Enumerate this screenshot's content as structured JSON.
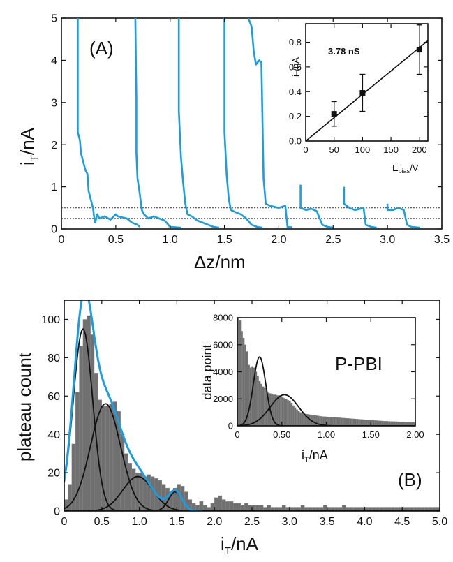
{
  "colors": {
    "trace": "#1a9ee0",
    "hist_fill": "#707070",
    "hist_edge": "#8a8a8a",
    "fit": "#111111",
    "axis": "#111111"
  },
  "chart_data": [
    {
      "type": "line",
      "panel_label": "(A)",
      "xlabel": "Δz/nm",
      "ylabel_main": "i",
      "ylabel_sub": "T",
      "ylabel_tail": "/nA",
      "xlim": [
        0,
        3.5
      ],
      "ylim": [
        0,
        5
      ],
      "xticks": [
        "0",
        "0.5",
        "1.0",
        "1.5",
        "2.0",
        "2.5",
        "3.0",
        "3.5"
      ],
      "yticks": [
        "0",
        "1",
        "2",
        "3",
        "4",
        "5"
      ],
      "reference_lines": [
        0.25,
        0.5
      ],
      "series": [
        {
          "points": [
            [
              0.15,
              5
            ],
            [
              0.15,
              2.3
            ],
            [
              0.17,
              2.1
            ],
            [
              0.18,
              1.8
            ],
            [
              0.2,
              1.6
            ],
            [
              0.22,
              1.4
            ],
            [
              0.24,
              1.3
            ],
            [
              0.25,
              0.9
            ],
            [
              0.27,
              0.7
            ],
            [
              0.29,
              0.5
            ],
            [
              0.3,
              0.3
            ],
            [
              0.31,
              0.15
            ],
            [
              0.33,
              0.35
            ],
            [
              0.35,
              0.25
            ],
            [
              0.4,
              0.3
            ],
            [
              0.45,
              0.22
            ],
            [
              0.5,
              0.35
            ],
            [
              0.52,
              0.3
            ],
            [
              0.6,
              0.25
            ],
            [
              0.65,
              0.15
            ],
            [
              0.7,
              0.1
            ],
            [
              0.72,
              0.05
            ]
          ]
        },
        {
          "points": [
            [
              0.68,
              5
            ],
            [
              0.69,
              3.1
            ],
            [
              0.69,
              1.8
            ],
            [
              0.7,
              1.2
            ],
            [
              0.72,
              0.85
            ],
            [
              0.74,
              0.45
            ],
            [
              0.76,
              0.35
            ],
            [
              0.8,
              0.25
            ],
            [
              0.85,
              0.3
            ],
            [
              0.9,
              0.25
            ],
            [
              0.95,
              0.2
            ],
            [
              1.0,
              0.05
            ],
            [
              1.05,
              0.04
            ],
            [
              1.1,
              0.03
            ]
          ]
        },
        {
          "points": [
            [
              1.08,
              5
            ],
            [
              1.08,
              2.8
            ],
            [
              1.1,
              1.7
            ],
            [
              1.12,
              1.1
            ],
            [
              1.14,
              0.6
            ],
            [
              1.16,
              0.35
            ],
            [
              1.2,
              0.3
            ],
            [
              1.25,
              0.2
            ],
            [
              1.3,
              0.15
            ],
            [
              1.35,
              0.1
            ],
            [
              1.4,
              0.05
            ],
            [
              1.45,
              0.03
            ]
          ]
        },
        {
          "points": [
            [
              1.5,
              5
            ],
            [
              1.5,
              2.3
            ],
            [
              1.52,
              1.3
            ],
            [
              1.54,
              0.7
            ],
            [
              1.56,
              0.45
            ],
            [
              1.6,
              0.4
            ],
            [
              1.65,
              0.35
            ],
            [
              1.7,
              0.25
            ],
            [
              1.75,
              0.1
            ],
            [
              1.8,
              0.05
            ],
            [
              1.85,
              0.03
            ]
          ]
        },
        {
          "points": [
            [
              1.72,
              5
            ],
            [
              1.75,
              4.8
            ],
            [
              1.77,
              4.2
            ],
            [
              1.79,
              3.9
            ],
            [
              1.82,
              4.0
            ],
            [
              1.84,
              3.95
            ],
            [
              1.86,
              1.2
            ],
            [
              1.88,
              0.6
            ],
            [
              1.92,
              0.55
            ],
            [
              2.0,
              0.5
            ],
            [
              2.06,
              0.55
            ],
            [
              2.08,
              0.05
            ],
            [
              2.12,
              0.04
            ]
          ]
        },
        {
          "points": [
            [
              2.2,
              1.05
            ],
            [
              2.2,
              0.5
            ],
            [
              2.25,
              0.45
            ],
            [
              2.3,
              0.48
            ],
            [
              2.35,
              0.42
            ],
            [
              2.4,
              0.1
            ],
            [
              2.45,
              0.05
            ],
            [
              2.5,
              0.03
            ]
          ]
        },
        {
          "points": [
            [
              2.6,
              1.0
            ],
            [
              2.6,
              0.6
            ],
            [
              2.65,
              0.5
            ],
            [
              2.7,
              0.45
            ],
            [
              2.78,
              0.5
            ],
            [
              2.8,
              0.1
            ],
            [
              2.85,
              0.05
            ],
            [
              2.9,
              0.03
            ]
          ]
        },
        {
          "points": [
            [
              3.0,
              0.6
            ],
            [
              3.0,
              0.45
            ],
            [
              3.05,
              0.45
            ],
            [
              3.1,
              0.5
            ],
            [
              3.15,
              0.45
            ],
            [
              3.18,
              0.1
            ],
            [
              3.22,
              0.05
            ],
            [
              3.3,
              0.03
            ]
          ]
        }
      ]
    },
    {
      "type": "scatter",
      "role": "inset",
      "annotation": "3.78 nS",
      "xlabel_main": "E",
      "xlabel_sub": "bias",
      "xlabel_tail": "/V",
      "ylabel_main": "i",
      "ylabel_sub": "T",
      "ylabel_tail": "/nA",
      "xlim": [
        0,
        215
      ],
      "ylim": [
        0,
        0.95
      ],
      "xticks": [
        "0",
        "50",
        "100",
        "150",
        "200"
      ],
      "yticks": [
        "0.0",
        "0.2",
        "0.4",
        "0.6",
        "0.8"
      ],
      "points": [
        {
          "x": 50,
          "y": 0.22,
          "err": 0.1
        },
        {
          "x": 100,
          "y": 0.39,
          "err": 0.15
        },
        {
          "x": 200,
          "y": 0.74,
          "err": 0.2
        }
      ],
      "fit_slope": 0.00378
    },
    {
      "type": "bar",
      "panel_label": "(B)",
      "xlabel_main": "i",
      "xlabel_sub": "T",
      "xlabel_tail": "/nA",
      "ylabel": "plateau count",
      "xlim": [
        0,
        5
      ],
      "ylim": [
        0,
        110
      ],
      "xticks": [
        "0",
        "0.5",
        "1.0",
        "1.5",
        "2.0",
        "2.5",
        "3.0",
        "3.5",
        "4.0",
        "4.5",
        "5.0"
      ],
      "yticks": [
        "0",
        "20",
        "40",
        "60",
        "80",
        "100"
      ],
      "bin_width": 0.05,
      "counts": [
        6,
        14,
        35,
        62,
        86,
        100,
        102,
        92,
        72,
        58,
        55,
        55,
        56,
        57,
        52,
        40,
        30,
        25,
        22,
        20,
        20,
        18,
        19,
        18,
        17,
        16,
        14,
        12,
        10,
        12,
        14,
        13,
        10,
        6,
        4,
        3,
        5,
        3,
        2,
        4,
        7,
        8,
        6,
        5,
        5,
        4,
        4,
        3,
        4,
        3,
        3,
        3,
        3,
        2,
        3,
        2,
        2,
        2,
        3,
        2,
        2,
        2,
        2,
        3,
        2,
        2,
        2,
        2,
        2,
        3,
        2,
        2,
        2,
        2,
        3,
        2,
        2,
        2,
        2,
        2,
        2,
        2,
        2,
        2,
        2,
        2,
        2,
        2,
        2,
        2,
        2,
        2,
        2,
        2,
        2,
        2,
        2,
        2,
        2,
        2
      ],
      "gaussians": [
        {
          "amp": 95,
          "mu": 0.25,
          "sigma": 0.13
        },
        {
          "amp": 56,
          "mu": 0.55,
          "sigma": 0.2
        },
        {
          "amp": 18,
          "mu": 0.98,
          "sigma": 0.2
        },
        {
          "amp": 10,
          "mu": 1.48,
          "sigma": 0.09
        }
      ]
    },
    {
      "type": "bar",
      "role": "inset",
      "annotation": "P-PBI",
      "xlabel_main": "i",
      "xlabel_sub": "T",
      "xlabel_tail": "/nA",
      "ylabel": "data point",
      "xlim": [
        0,
        2
      ],
      "ylim": [
        0,
        8000
      ],
      "xticks": [
        "0",
        "0.50",
        "1.00",
        "1.50",
        "2.00"
      ],
      "yticks": [
        "0",
        "2000",
        "4000",
        "6000",
        "8000"
      ],
      "bin_width": 0.02,
      "counts": [
        8000,
        7800,
        7000,
        6500,
        6000,
        5500,
        4500,
        4300,
        4400,
        4300,
        4000,
        3700,
        3300,
        3100,
        2900,
        2800,
        2600,
        2450,
        2400,
        2350,
        2300,
        2300,
        2250,
        2250,
        2200,
        2100,
        2050,
        2000,
        1900,
        1850,
        1700,
        1500,
        1350,
        1200,
        1100,
        1000,
        950,
        900,
        880,
        860,
        840,
        820,
        800,
        780,
        760,
        740,
        720,
        700,
        690,
        680,
        670,
        660,
        650,
        640,
        630,
        620,
        610,
        600,
        590,
        580,
        570,
        560,
        550,
        540,
        530,
        520,
        510,
        500,
        490,
        480,
        470,
        460,
        450,
        440,
        430,
        420,
        410,
        400,
        390,
        380,
        370,
        360,
        350,
        345,
        340,
        335,
        330,
        325,
        320,
        315,
        310,
        305,
        300,
        295,
        290,
        285,
        280,
        275,
        270,
        265
      ],
      "gaussians": [
        {
          "amp": 5100,
          "mu": 0.25,
          "sigma": 0.07
        },
        {
          "amp": 2300,
          "mu": 0.53,
          "sigma": 0.16
        }
      ]
    }
  ]
}
